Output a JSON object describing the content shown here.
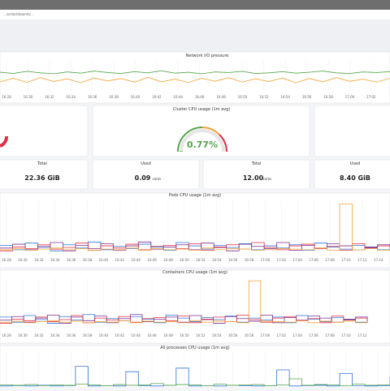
{
  "browser": {
    "url": "...ss/dashboards/..."
  },
  "time_ticks": [
    "16:28",
    "16:30",
    "16:32",
    "16:34",
    "16:36",
    "16:38",
    "16:40",
    "16:42",
    "16:44",
    "16:46",
    "16:48",
    "16:50",
    "16:52",
    "16:54",
    "16:56",
    "16:58",
    "17:00",
    "17:02",
    "17:04",
    "17:06",
    "17:08",
    "17:10",
    "17:12",
    "17:14"
  ],
  "network": {
    "title": "Network I/O pressure",
    "series": [
      {
        "color": "#56a64b",
        "values": [
          62,
          58,
          65,
          60,
          57,
          63,
          59,
          66,
          61,
          58,
          64,
          60,
          67,
          59,
          62,
          57,
          63,
          61,
          65,
          58,
          60,
          64,
          59,
          62,
          66,
          60,
          58,
          63,
          61,
          64
        ]
      },
      {
        "color": "#f2a43a",
        "values": [
          30,
          42,
          28,
          44,
          31,
          40,
          27,
          43,
          33,
          41,
          29,
          45,
          30,
          39,
          28,
          42,
          32,
          44,
          29,
          40,
          31,
          43,
          27,
          41,
          30,
          44,
          32,
          39,
          29,
          42
        ]
      }
    ]
  },
  "gauge": {
    "title": "Cluster CPU usage (1m avg)",
    "value": {
      "value": 0.77,
      "label": "0.77%"
    }
  },
  "stats": [
    {
      "label": "Total",
      "value": "22.36 GiB"
    },
    {
      "label": "Used",
      "value": "0.09",
      "unit": "cores"
    },
    {
      "label": "Total",
      "value": "12.00",
      "unit": "cores"
    },
    {
      "label": "Used",
      "value": "8.40 GiB"
    }
  ],
  "pods": {
    "title": "Pods CPU usage (1m avg)",
    "series": [
      {
        "color": "#7b2f8f",
        "values": [
          15,
          22,
          12,
          18,
          25,
          10,
          20,
          14,
          23,
          11,
          19,
          26,
          13,
          17,
          21,
          12,
          24,
          16,
          10,
          22,
          18,
          14,
          25,
          11,
          20,
          15,
          23,
          19,
          12,
          17,
          21,
          14
        ]
      },
      {
        "color": "#3274d9",
        "values": [
          20,
          12,
          24,
          16,
          10,
          21,
          15,
          26,
          12,
          18,
          14,
          22,
          17,
          11,
          25,
          19,
          13,
          20,
          16,
          23,
          12,
          19,
          15,
          21,
          11,
          24,
          17,
          13,
          20,
          16,
          12,
          22
        ]
      },
      {
        "color": "#e02f44",
        "values": [
          10,
          17,
          14,
          21,
          13,
          16,
          24,
          11,
          19,
          15,
          22,
          12,
          18,
          20,
          14,
          23,
          11,
          17,
          21,
          13,
          25,
          16,
          12,
          19,
          22,
          14,
          18,
          11,
          23,
          15,
          19,
          13
        ]
      },
      {
        "color": "#f2a43a",
        "values": [
          12,
          14,
          11,
          13,
          15,
          12,
          14,
          11,
          13,
          12,
          15,
          11,
          14,
          12,
          13,
          11,
          15,
          12,
          14,
          13,
          11,
          12,
          14,
          13,
          12,
          15,
          11,
          95,
          12,
          14,
          11,
          13
        ]
      }
    ]
  },
  "containers": {
    "title": "Containers CPU usage (1m avg)",
    "series": [
      {
        "color": "#7b2f8f",
        "values": [
          18,
          25,
          14,
          22,
          28,
          12,
          24,
          17,
          26,
          13,
          21,
          29,
          15,
          20,
          24,
          14,
          27,
          19,
          12,
          25,
          21,
          16,
          28,
          13,
          23,
          18,
          26,
          22,
          14,
          20,
          24,
          17
        ]
      },
      {
        "color": "#3274d9",
        "values": [
          24,
          14,
          27,
          19,
          12,
          25,
          18,
          29,
          14,
          21,
          17,
          25,
          20,
          13,
          28,
          22,
          15,
          23,
          19,
          26,
          14,
          22,
          18,
          24,
          13,
          27,
          20,
          15,
          23,
          19,
          14,
          25
        ]
      },
      {
        "color": "#e02f44",
        "values": [
          12,
          20,
          17,
          24,
          15,
          19,
          27,
          13,
          22,
          18,
          25,
          14,
          21,
          23,
          17,
          26,
          13,
          20,
          24,
          15,
          28,
          19,
          14,
          22,
          25,
          17,
          21,
          13,
          26,
          18,
          22,
          15
        ]
      },
      {
        "color": "#f2a43a",
        "values": [
          14,
          16,
          13,
          15,
          17,
          14,
          16,
          13,
          15,
          14,
          17,
          13,
          16,
          14,
          15,
          13,
          17,
          14,
          16,
          15,
          13,
          95,
          16,
          15,
          14,
          17,
          13,
          16,
          14,
          16,
          13,
          15
        ]
      }
    ]
  },
  "processes": {
    "title": "All processes CPU usage (1m avg)",
    "series": [
      {
        "color": "#3274d9",
        "values": [
          5,
          6,
          5,
          7,
          5,
          6,
          60,
          5,
          6,
          5,
          45,
          6,
          5,
          7,
          55,
          5,
          6,
          5,
          7,
          6,
          5,
          6,
          50,
          5,
          6,
          7,
          5,
          40,
          6,
          5,
          6,
          30
        ]
      },
      {
        "color": "#56a64b",
        "values": [
          8,
          7,
          9,
          6,
          8,
          7,
          10,
          8,
          6,
          9,
          7,
          8,
          12,
          7,
          9,
          8,
          6,
          10,
          7,
          8,
          9,
          6,
          8,
          25,
          7,
          9,
          8,
          6,
          10,
          7,
          8,
          9
        ]
      }
    ]
  }
}
